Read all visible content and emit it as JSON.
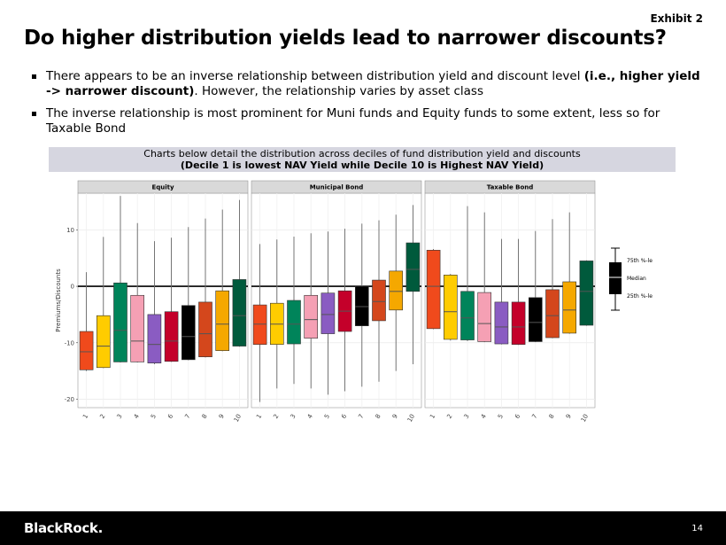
{
  "slide": {
    "exhibit": "Exhibit 2",
    "title": "Do higher distribution yields lead to narrower discounts?",
    "bullets": [
      [
        "There appears to be an inverse relationship between distribution yield and discount level ",
        "(i.e., higher yield -> narrower discount)",
        ". However, the relationship varies by asset class"
      ],
      [
        "The inverse relationship is most prominent for Muni funds and Equity funds to some extent, less so for Taxable Bond"
      ]
    ],
    "banner": [
      "Charts below detail the distribution across deciles of fund distribution yield and discounts",
      "(Decile 1 is lowest NAV Yield while Decile 10 is Highest NAV Yield)"
    ],
    "logo": "BlackRock.",
    "page": "14"
  },
  "legend_key": {
    "q3": "75th %-le",
    "median": "Median",
    "q1": "25th %-le"
  },
  "chart_data": [
    {
      "type": "box",
      "title": "Equity",
      "ylabel": "Premiums/Discounts",
      "categories": [
        "1",
        "2",
        "3",
        "4",
        "5",
        "6",
        "7",
        "8",
        "9",
        "10"
      ],
      "colors": [
        "#f04a1c",
        "#ffcc00",
        "#00845a",
        "#f5a0b4",
        "#8a5cc2",
        "#c4002a",
        "#000000",
        "#d4471c",
        "#f5a800",
        "#005a3c"
      ],
      "ylim": [
        -21.5,
        16.5
      ],
      "yticks": [
        -20,
        -10,
        0,
        10
      ],
      "boxes": [
        {
          "low": -15,
          "q1": -14.8,
          "median": -11.6,
          "q3": -8.0,
          "high": 2.5
        },
        {
          "low": -14.5,
          "q1": -14.4,
          "median": -10.6,
          "q3": -5.2,
          "high": 8.75
        },
        {
          "low": -13.5,
          "q1": -13.4,
          "median": -7.8,
          "q3": 0.6,
          "high": 16
        },
        {
          "low": -13.5,
          "q1": -13.4,
          "median": -9.7,
          "q3": -1.6,
          "high": 11.2
        },
        {
          "low": -13.8,
          "q1": -13.6,
          "median": -10.3,
          "q3": -5.0,
          "high": 8.0
        },
        {
          "low": -13.4,
          "q1": -13.3,
          "median": -9.7,
          "q3": -4.5,
          "high": 8.6
        },
        {
          "low": -13.1,
          "q1": -13.0,
          "median": -8.9,
          "q3": -3.4,
          "high": 10.5
        },
        {
          "low": -12.6,
          "q1": -12.5,
          "median": -8.4,
          "q3": -2.8,
          "high": 12.0
        },
        {
          "low": -11.5,
          "q1": -11.4,
          "median": -6.7,
          "q3": -0.8,
          "high": 13.6
        },
        {
          "low": -10.7,
          "q1": -10.6,
          "median": -5.2,
          "q3": 1.2,
          "high": 15.3
        }
      ]
    },
    {
      "type": "box",
      "title": "Municipal Bond",
      "categories": [
        "1",
        "2",
        "3",
        "4",
        "5",
        "6",
        "7",
        "8",
        "9",
        "10"
      ],
      "colors": [
        "#f04a1c",
        "#ffcc00",
        "#00845a",
        "#f5a0b4",
        "#8a5cc2",
        "#c4002a",
        "#000000",
        "#d4471c",
        "#f5a800",
        "#005a3c"
      ],
      "ylim": [
        -21.5,
        16.5
      ],
      "yticks": [
        -20,
        -10,
        0,
        10
      ],
      "boxes": [
        {
          "low": -20.5,
          "q1": -10.3,
          "median": -6.7,
          "q3": -3.3,
          "high": 7.5
        },
        {
          "low": -18.1,
          "q1": -10.3,
          "median": -6.7,
          "q3": -3.0,
          "high": 8.3
        },
        {
          "low": -17.3,
          "q1": -10.2,
          "median": -6.7,
          "q3": -2.5,
          "high": 8.8
        },
        {
          "low": -18.1,
          "q1": -9.2,
          "median": -5.9,
          "q3": -1.6,
          "high": 9.4
        },
        {
          "low": -19.2,
          "q1": -8.4,
          "median": -5.0,
          "q3": -1.2,
          "high": 9.7
        },
        {
          "low": -18.6,
          "q1": -8.0,
          "median": -4.4,
          "q3": -0.8,
          "high": 10.2
        },
        {
          "low": -17.8,
          "q1": -7.0,
          "median": -3.6,
          "q3": 0,
          "high": 11.1
        },
        {
          "low": -16.9,
          "q1": -6.1,
          "median": -2.7,
          "q3": 1.1,
          "high": 11.7
        },
        {
          "low": -15.0,
          "q1": -4.2,
          "median": -0.9,
          "q3": 2.7,
          "high": 12.7
        },
        {
          "low": -13.8,
          "q1": -0.9,
          "median": 3.0,
          "q3": 7.7,
          "high": 14.4
        }
      ]
    },
    {
      "type": "box",
      "title": "Taxable Bond",
      "categories": [
        "1",
        "2",
        "3",
        "4",
        "5",
        "6",
        "7",
        "8",
        "9",
        "10"
      ],
      "colors": [
        "#f04a1c",
        "#ffcc00",
        "#00845a",
        "#f5a0b4",
        "#8a5cc2",
        "#c4002a",
        "#000000",
        "#d4471c",
        "#f5a800",
        "#005a3c"
      ],
      "ylim": [
        -21.5,
        16.5
      ],
      "yticks": [
        -20,
        -10,
        0,
        10
      ],
      "boxes": [
        {
          "low": -7.6,
          "q1": -7.5,
          "median": 0,
          "q3": 6.4,
          "high": 6.6
        },
        {
          "low": -9.6,
          "q1": -9.4,
          "median": -4.5,
          "q3": 2.0,
          "high": 2.2
        },
        {
          "low": -9.7,
          "q1": -9.5,
          "median": -5.6,
          "q3": -0.9,
          "high": 14.2
        },
        {
          "low": -9.9,
          "q1": -9.8,
          "median": -6.6,
          "q3": -1.1,
          "high": 13.1
        },
        {
          "low": -10.3,
          "q1": -10.2,
          "median": -7.2,
          "q3": -2.8,
          "high": 8.4
        },
        {
          "low": -10.4,
          "q1": -10.3,
          "median": -7.2,
          "q3": -2.8,
          "high": 8.4
        },
        {
          "low": -9.9,
          "q1": -9.8,
          "median": -6.4,
          "q3": -2.0,
          "high": 9.8
        },
        {
          "low": -9.2,
          "q1": -9.1,
          "median": -5.2,
          "q3": -0.6,
          "high": 11.9
        },
        {
          "low": -8.4,
          "q1": -8.3,
          "median": -4.2,
          "q3": 0.8,
          "high": 13.1
        },
        {
          "low": -7.0,
          "q1": -6.9,
          "median": -0.9,
          "q3": 4.5,
          "high": 4.6
        }
      ]
    }
  ]
}
